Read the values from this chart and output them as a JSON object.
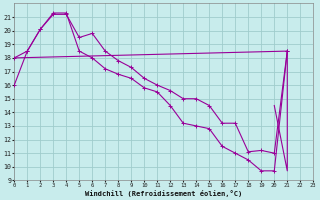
{
  "xlabel": "Windchill (Refroidissement éolien,°C)",
  "xlim": [
    0,
    23
  ],
  "ylim": [
    9,
    22
  ],
  "ytick_vals": [
    9,
    10,
    11,
    12,
    13,
    14,
    15,
    16,
    17,
    18,
    19,
    20,
    21
  ],
  "xtick_vals": [
    0,
    1,
    2,
    3,
    4,
    5,
    6,
    7,
    8,
    9,
    10,
    11,
    12,
    13,
    14,
    15,
    16,
    17,
    18,
    19,
    20,
    21,
    22,
    23
  ],
  "bg_color": "#c8ecec",
  "line_color": "#990099",
  "grid_color": "#a0cccc",
  "line_width": 0.8,
  "marker_size": 3.0,
  "line1_x": [
    0,
    1,
    2,
    3,
    4,
    5,
    6,
    7,
    8,
    9,
    10,
    11,
    12,
    13,
    14,
    15,
    16,
    17,
    18,
    19,
    20,
    21
  ],
  "line1_y": [
    18.0,
    18.5,
    20.1,
    21.2,
    21.2,
    19.5,
    19.8,
    18.5,
    17.8,
    17.3,
    16.5,
    16.0,
    15.6,
    15.0,
    15.0,
    14.5,
    13.2,
    13.2,
    11.1,
    11.2,
    11.0,
    18.5
  ],
  "line2_x": [
    0,
    1,
    2,
    3,
    4,
    5,
    6,
    7,
    8,
    9,
    10,
    11,
    12,
    13,
    14,
    15,
    16,
    17,
    18,
    19,
    20,
    21
  ],
  "line2_y": [
    16.0,
    18.5,
    20.1,
    21.3,
    21.3,
    18.5,
    18.0,
    17.2,
    16.8,
    16.5,
    15.8,
    15.5,
    14.5,
    13.2,
    13.0,
    12.8,
    11.5,
    11.0,
    10.5,
    9.7,
    9.7,
    18.5
  ],
  "line3_x": [
    0,
    21
  ],
  "line3_y": [
    18.0,
    18.5
  ],
  "line4_x": [
    21,
    21,
    20
  ],
  "line4_y": [
    18.5,
    9.7,
    14.5
  ]
}
